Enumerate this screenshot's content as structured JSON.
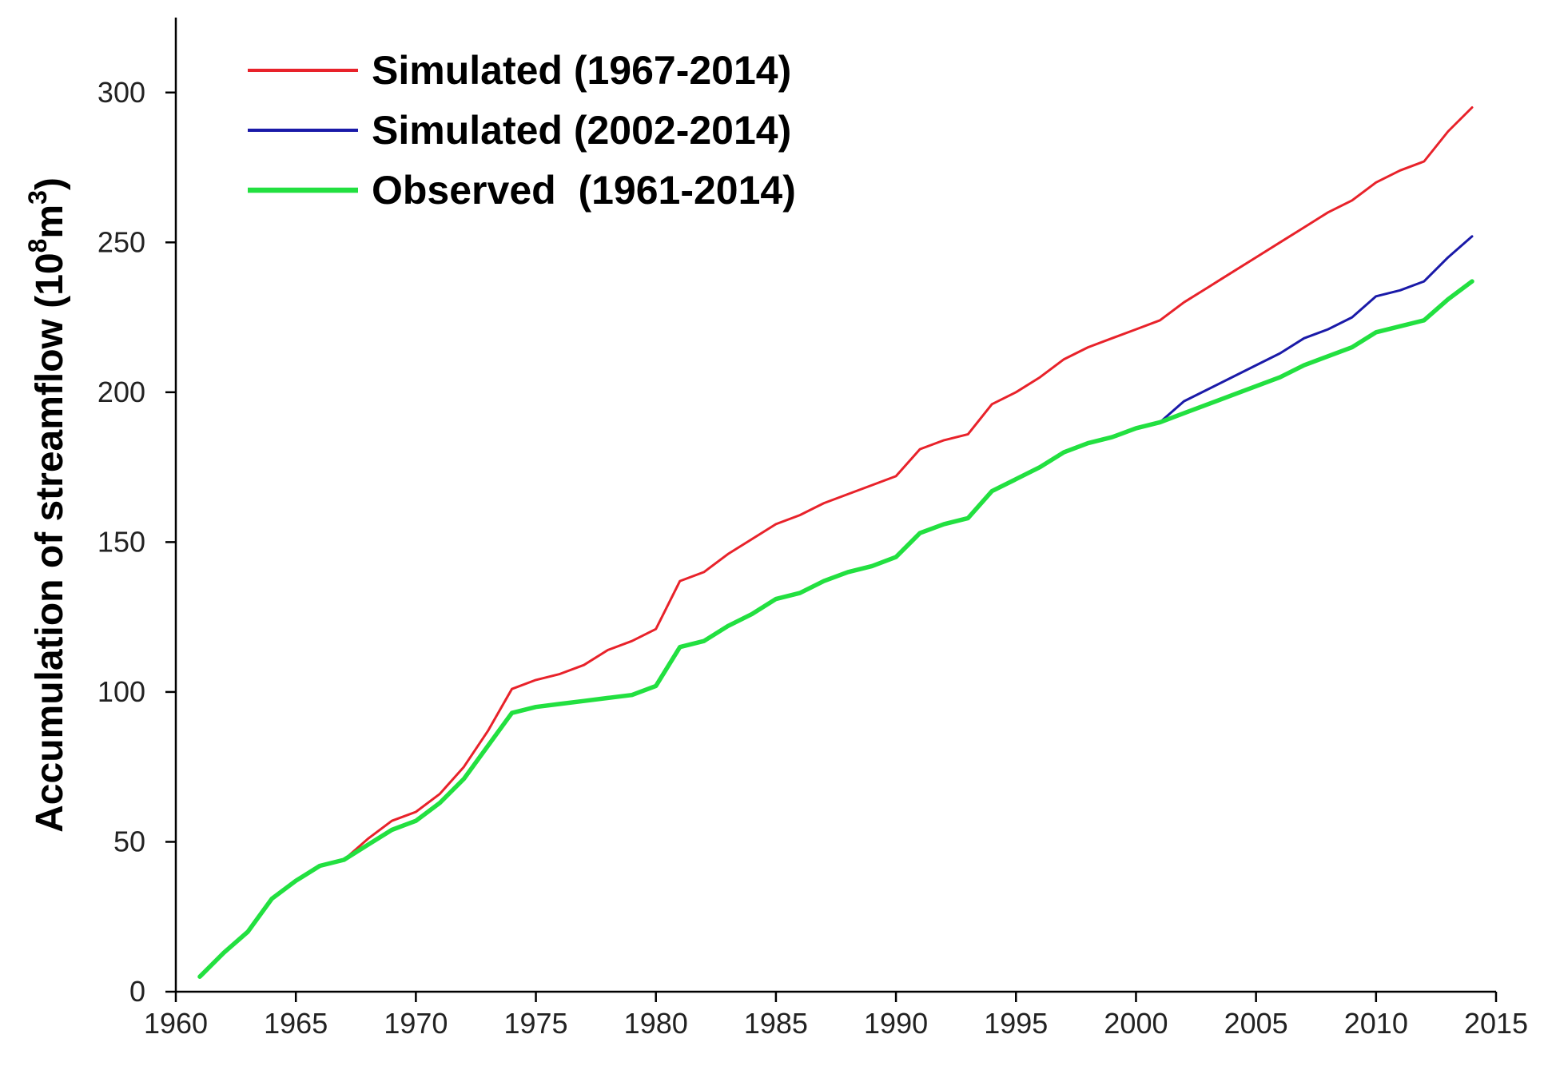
{
  "chart_data": {
    "type": "line",
    "title": "",
    "xlabel": "",
    "ylabel": {
      "main": "Accumulation of streamflow (10",
      "sup1": "8",
      "mid": "m",
      "sup2": "3",
      "close": ")"
    },
    "xlim": [
      1960,
      2015
    ],
    "ylim": [
      0,
      325
    ],
    "xticks": [
      1960,
      1965,
      1970,
      1975,
      1980,
      1985,
      1990,
      1995,
      2000,
      2005,
      2010,
      2015
    ],
    "yticks": [
      0,
      50,
      100,
      150,
      200,
      250,
      300
    ],
    "legend_position": "top-left",
    "grid": false,
    "series": [
      {
        "name": "Simulated (1967-2014)",
        "color": "#e8222a",
        "x": [
          1967,
          1968,
          1969,
          1970,
          1971,
          1972,
          1973,
          1974,
          1975,
          1976,
          1977,
          1978,
          1979,
          1980,
          1981,
          1982,
          1983,
          1984,
          1985,
          1986,
          1987,
          1988,
          1989,
          1990,
          1991,
          1992,
          1993,
          1994,
          1995,
          1996,
          1997,
          1998,
          1999,
          2000,
          2001,
          2002,
          2003,
          2004,
          2005,
          2006,
          2007,
          2008,
          2009,
          2010,
          2011,
          2012,
          2013,
          2014
        ],
        "y": [
          44,
          51,
          57,
          60,
          66,
          75,
          87,
          101,
          104,
          106,
          109,
          114,
          117,
          121,
          137,
          140,
          146,
          151,
          156,
          159,
          163,
          166,
          169,
          172,
          181,
          184,
          186,
          196,
          200,
          205,
          211,
          215,
          218,
          221,
          224,
          230,
          235,
          240,
          245,
          250,
          255,
          260,
          264,
          270,
          274,
          277,
          287,
          295
        ]
      },
      {
        "name": "Simulated (2002-2014)",
        "color": "#1a1aa8",
        "x": [
          2001,
          2002,
          2003,
          2004,
          2005,
          2006,
          2007,
          2008,
          2009,
          2010,
          2011,
          2012,
          2013,
          2014
        ],
        "y": [
          190,
          197,
          201,
          205,
          209,
          213,
          218,
          221,
          225,
          232,
          234,
          237,
          245,
          252
        ]
      },
      {
        "name": "Observed  (1961-2014)",
        "color": "#22e040",
        "x": [
          1961,
          1962,
          1963,
          1964,
          1965,
          1966,
          1967,
          1968,
          1969,
          1970,
          1971,
          1972,
          1973,
          1974,
          1975,
          1976,
          1977,
          1978,
          1979,
          1980,
          1981,
          1982,
          1983,
          1984,
          1985,
          1986,
          1987,
          1988,
          1989,
          1990,
          1991,
          1992,
          1993,
          1994,
          1995,
          1996,
          1997,
          1998,
          1999,
          2000,
          2001,
          2002,
          2003,
          2004,
          2005,
          2006,
          2007,
          2008,
          2009,
          2010,
          2011,
          2012,
          2013,
          2014
        ],
        "y": [
          5,
          13,
          20,
          31,
          37,
          42,
          44,
          49,
          54,
          57,
          63,
          71,
          82,
          93,
          95,
          96,
          97,
          98,
          99,
          102,
          115,
          117,
          122,
          126,
          131,
          133,
          137,
          140,
          142,
          145,
          153,
          156,
          158,
          167,
          171,
          175,
          180,
          183,
          185,
          188,
          190,
          193,
          196,
          199,
          202,
          205,
          209,
          212,
          215,
          220,
          222,
          224,
          231,
          237
        ]
      }
    ]
  }
}
